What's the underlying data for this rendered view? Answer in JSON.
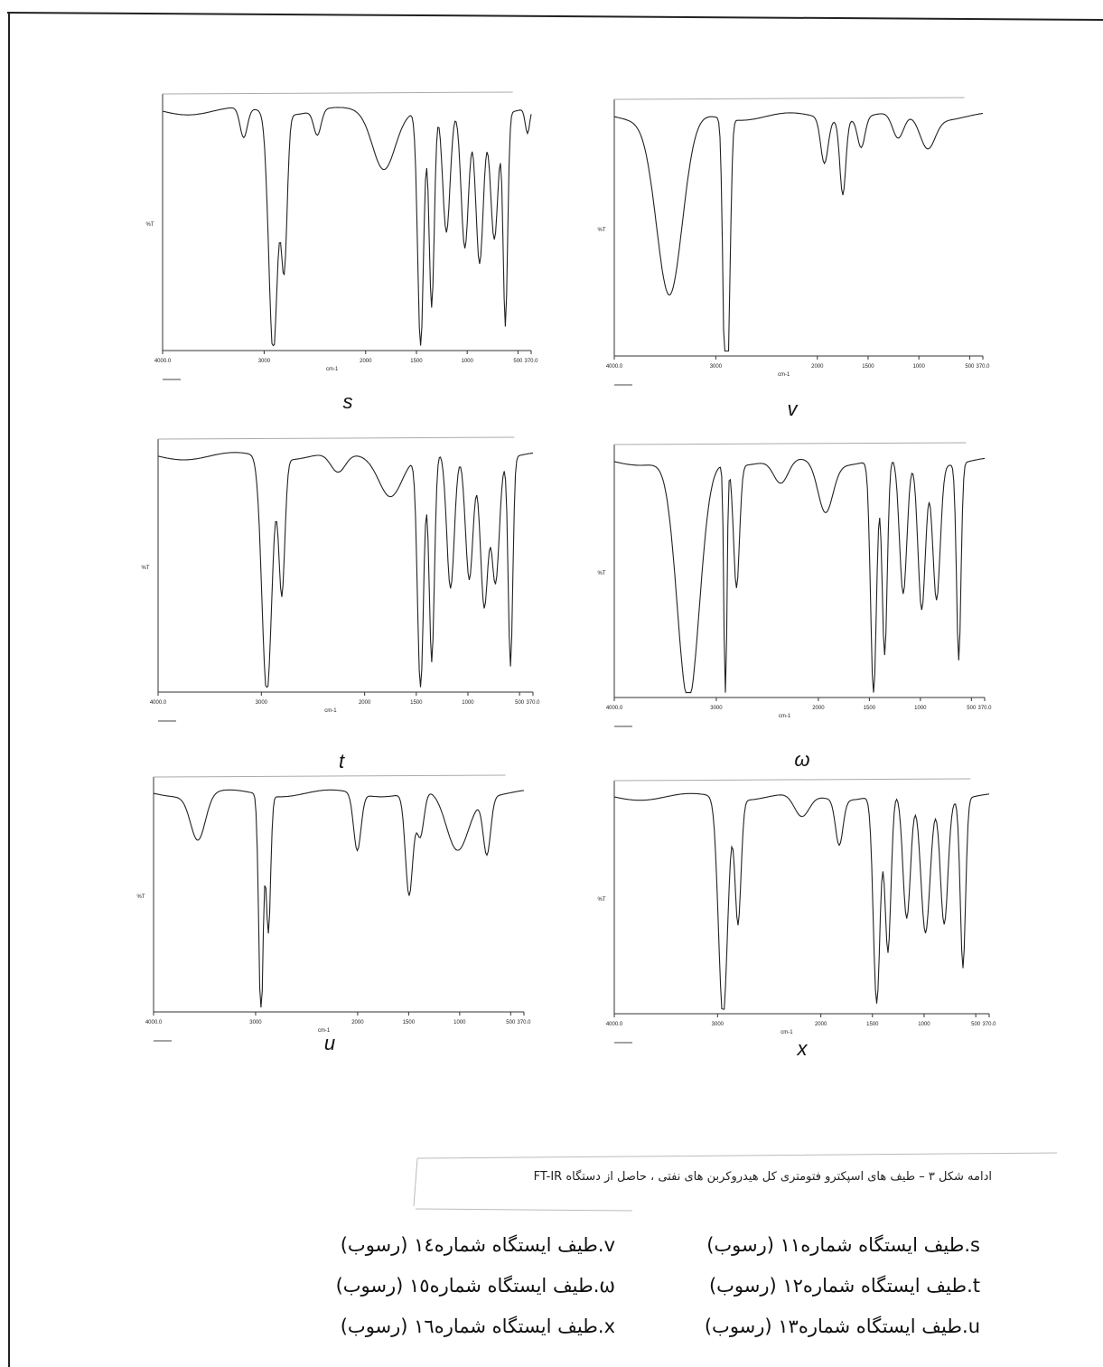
{
  "figures": {
    "panels": [
      {
        "label": "s",
        "xlabel": "cm-1",
        "ylabel": "%T",
        "xlim": [
          4000,
          370
        ],
        "xticks": [
          {
            "value": 4000,
            "label": "4000.0"
          },
          3000,
          2000,
          1500,
          1000,
          500,
          {
            "value": 370,
            "label": "370.0"
          }
        ]
      },
      {
        "label": "v",
        "xlabel": "cm-1",
        "ylabel": "%T",
        "xlim": [
          4000,
          370
        ],
        "xticks": [
          {
            "value": 4000,
            "label": "4000.0"
          },
          3000,
          2000,
          1500,
          1000,
          500,
          {
            "value": 370,
            "label": "370.0"
          }
        ]
      },
      {
        "label": "t",
        "xlabel": "cm-1",
        "ylabel": "%T",
        "xlim": [
          4000,
          370
        ],
        "xticks": [
          {
            "value": 4000,
            "label": "4000.0"
          },
          3000,
          2000,
          1500,
          1000,
          500,
          {
            "value": 370,
            "label": "370.0"
          }
        ]
      },
      {
        "label": "ω",
        "xlabel": "cm-1",
        "ylabel": "%T",
        "xlim": [
          4000,
          370
        ],
        "xticks": [
          {
            "value": 4000,
            "label": "4000.0"
          },
          3000,
          2000,
          1500,
          1000,
          500,
          {
            "value": 370,
            "label": "370.0"
          }
        ]
      },
      {
        "label": "u",
        "xlabel": "cm-1",
        "ylabel": "%T",
        "xlim": [
          4000,
          370
        ],
        "xticks": [
          {
            "value": 4000,
            "label": "4000.0"
          },
          3000,
          2000,
          1500,
          1000,
          500,
          {
            "value": 370,
            "label": "370.0"
          }
        ]
      },
      {
        "label": "x",
        "xlabel": "cm-1",
        "ylabel": "%T",
        "xlim": [
          4000,
          370
        ],
        "xticks": [
          {
            "value": 4000,
            "label": "4000.0"
          },
          3000,
          2000,
          1500,
          1000,
          500,
          {
            "value": 370,
            "label": "370.0"
          }
        ]
      }
    ]
  },
  "caption": "ادامه شکل ۳ – طیف های اسپکترو فتومتری کل هیدروکربن های نفتی ، حاصل از دستگاه FT-IR",
  "legend": {
    "right": [
      "s.طیف ایستگاه شماره۱۱ (رسوب)",
      "t.طیف ایستگاه شماره۱۲ (رسوب)",
      "u.طیف ایستگاه شماره۱۳ (رسوب)"
    ],
    "left": [
      "v.طیف ایستگاه شماره١٤ (رسوب)",
      "ω.طیف ایستگاه شماره١٥ (رسوب)",
      "x.طیف ایستگاه شماره١٦ (رسوب)"
    ]
  }
}
